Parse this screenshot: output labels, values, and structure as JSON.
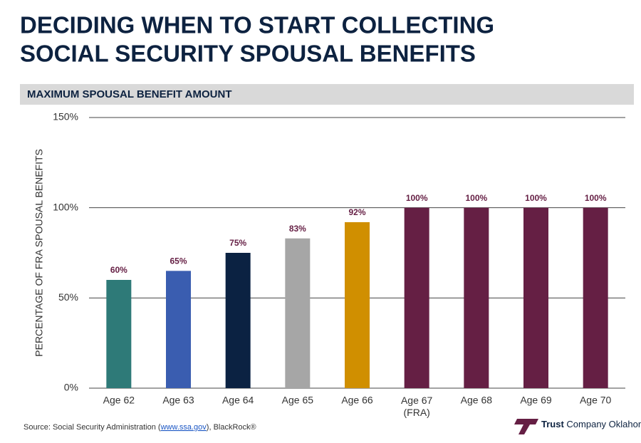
{
  "chart_data": {
    "type": "bar",
    "title_lines": [
      "DECIDING WHEN TO START COLLECTING",
      "SOCIAL SECURITY SPOUSAL BENEFITS"
    ],
    "subtitle": "MAXIMUM SPOUSAL BENEFIT AMOUNT",
    "y_label": "PERCENTAGE OF FRA SPOUSAL BENEFITS",
    "categories": [
      "Age 62",
      "Age 63",
      "Age 64",
      "Age 65",
      "Age 66",
      "Age 67\n(FRA)",
      "Age 68",
      "Age 69",
      "Age 70"
    ],
    "values": [
      60,
      65,
      75,
      83,
      92,
      100,
      100,
      100,
      100
    ],
    "value_labels": [
      "60%",
      "65%",
      "75%",
      "83%",
      "92%",
      "100%",
      "100%",
      "100%",
      "100%"
    ],
    "colors": [
      "#2e7a78",
      "#3a5db0",
      "#0b2242",
      "#a6a6a6",
      "#d08f00",
      "#651f44",
      "#651f44",
      "#651f44",
      "#651f44"
    ],
    "ylim": [
      0,
      150
    ],
    "yticks": [
      {
        "value": 0,
        "label": "0%"
      },
      {
        "value": 50,
        "label": "50%"
      },
      {
        "value": 100,
        "label": "100%"
      },
      {
        "value": 150,
        "label": "150%"
      }
    ],
    "grid": true
  },
  "footer": {
    "source_prefix": "Source: Social Security Administration (",
    "source_link": "www.ssa.gov",
    "source_suffix": "), BlackRock®",
    "logo_bold": "Trust",
    "logo_rest": "Company Oklahoma"
  }
}
